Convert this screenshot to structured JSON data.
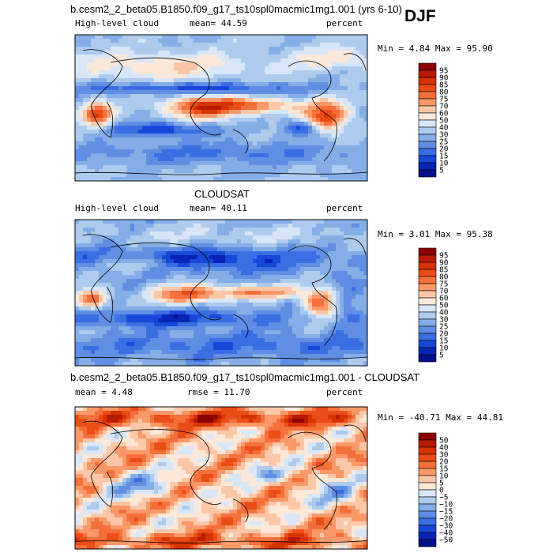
{
  "season": "DJF",
  "panels": [
    {
      "title": "b.cesm2_2_beta05.B1850.f09_g17_ts10spl0macmic1mg1.001 (yrs 6-10)",
      "left_label": "High-level cloud",
      "center_label": "mean=  44.59",
      "right_label": "percent",
      "minmax": "Min =   4.84 Max =  95.90",
      "colorbar_labels": [
        "95",
        "90",
        "85",
        "80",
        "75",
        "70",
        "60",
        "50",
        "40",
        "30",
        "25",
        "20",
        "15",
        "10",
        "5"
      ]
    },
    {
      "title": "CLOUDSAT",
      "left_label": "High-level cloud",
      "center_label": "mean=  40.11",
      "right_label": "percent",
      "minmax": "Min =   3.01 Max =  95.38",
      "colorbar_labels": [
        "95",
        "90",
        "85",
        "80",
        "75",
        "70",
        "60",
        "50",
        "40",
        "30",
        "25",
        "20",
        "15",
        "10",
        "5"
      ]
    },
    {
      "title": "b.cesm2_2_beta05.B1850.f09_g17_ts10spl0macmic1mg1.001 - CLOUDSAT",
      "left_label": "mean =   4.48",
      "center_label": "rmse =  11.70",
      "right_label": "percent",
      "minmax": "Min = -40.71 Max =  44.81",
      "colorbar_labels": [
        "50",
        "40",
        "30",
        "20",
        "15",
        "10",
        "5",
        "0",
        "−5",
        "−10",
        "−15",
        "−20",
        "−30",
        "−40",
        "−50"
      ]
    }
  ],
  "colors": {
    "abs_scale": [
      "#8b0000",
      "#b71c00",
      "#d63300",
      "#ea4d16",
      "#f4703b",
      "#f99868",
      "#fcc7a8",
      "#fbe8d9",
      "#d8e6f7",
      "#aecbee",
      "#85aee7",
      "#5f8ee3",
      "#3a6ee2",
      "#1848d8",
      "#0624b5",
      "#020e8a"
    ],
    "diff_scale": [
      "#8b0000",
      "#b71c00",
      "#d63300",
      "#ea4d16",
      "#f4703b",
      "#f99868",
      "#fcc7a8",
      "#fbe8d9",
      "#d8e6f7",
      "#aecbee",
      "#85aee7",
      "#5f8ee3",
      "#3a6ee2",
      "#1848d8",
      "#0624b5",
      "#020e8a"
    ]
  },
  "chart_data": [
    {
      "type": "heatmap",
      "title": "b.cesm2_2_beta05.B1850.f09_g17_ts10spl0macmic1mg1.001 (yrs 6-10)",
      "variable": "High-level cloud",
      "units": "percent",
      "mean": 44.59,
      "min": 4.84,
      "max": 95.9,
      "levels": [
        5,
        10,
        15,
        20,
        25,
        30,
        40,
        50,
        60,
        70,
        75,
        80,
        85,
        90,
        95
      ]
    },
    {
      "type": "heatmap",
      "title": "CLOUDSAT",
      "variable": "High-level cloud",
      "units": "percent",
      "mean": 40.11,
      "min": 3.01,
      "max": 95.38,
      "levels": [
        5,
        10,
        15,
        20,
        25,
        30,
        40,
        50,
        60,
        70,
        75,
        80,
        85,
        90,
        95
      ]
    },
    {
      "type": "heatmap",
      "title": "b.cesm2_2_beta05.B1850.f09_g17_ts10spl0macmic1mg1.001 - CLOUDSAT",
      "units": "percent",
      "mean": 4.48,
      "rmse": 11.7,
      "min": -40.71,
      "max": 44.81,
      "levels": [
        -50,
        -40,
        -30,
        -20,
        -15,
        -10,
        -5,
        0,
        5,
        10,
        15,
        20,
        30,
        40,
        50
      ]
    }
  ]
}
